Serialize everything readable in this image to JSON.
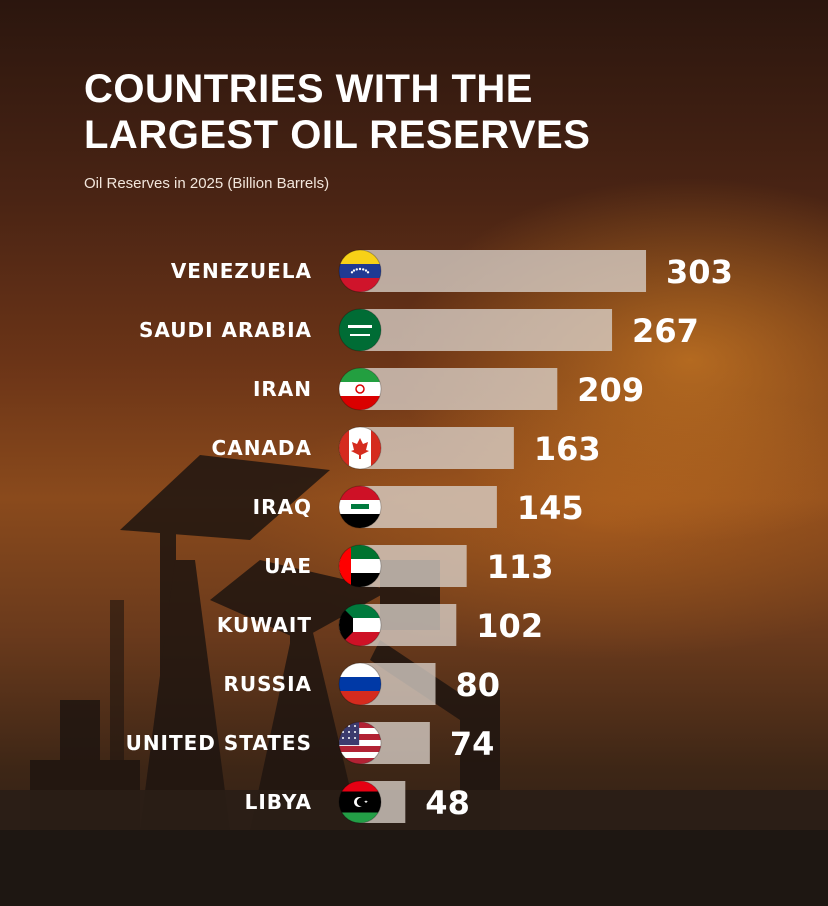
{
  "chart_data": {
    "type": "bar",
    "orientation": "horizontal",
    "title": "COUNTRIES WITH THE LARGEST OIL RESERVES",
    "subtitle": "Oil Reserves in 2025 (Billion Barrels)",
    "categories": [
      "VENEZUELA",
      "SAUDI ARABIA",
      "IRAN",
      "CANADA",
      "IRAQ",
      "UAE",
      "KUWAIT",
      "RUSSIA",
      "UNITED STATES",
      "LIBYA"
    ],
    "values": [
      303,
      267,
      209,
      163,
      145,
      113,
      102,
      80,
      74,
      48
    ],
    "value_labels": [
      "303",
      "267",
      "209",
      "163",
      "145",
      "113",
      "102",
      "80",
      "74",
      "48"
    ],
    "flag_icons": [
      "venezuela-flag-icon",
      "saudi-arabia-flag-icon",
      "iran-flag-icon",
      "canada-flag-icon",
      "iraq-flag-icon",
      "uae-flag-icon",
      "kuwait-flag-icon",
      "russia-flag-icon",
      "united-states-flag-icon",
      "libya-flag-icon"
    ],
    "bar_color": "#d9cfc8",
    "text_color": "#ffffff",
    "grid": false,
    "legend": false
  }
}
